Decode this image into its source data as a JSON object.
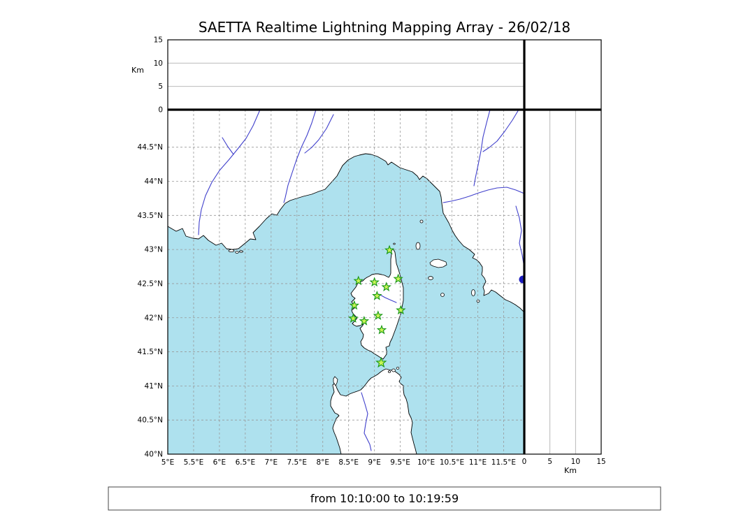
{
  "title": "SAETTA Realtime Lightning Mapping Array - 26/02/18",
  "footer": {
    "time_range": "from 10:10:00 to 10:19:59"
  },
  "colors": {
    "sea": "#aee1ee",
    "land": "#ffffff",
    "coastline": "#000000",
    "river": "#4040cc",
    "lake": "#1c1cbe",
    "grid_dashed": "#999999",
    "grid_solid": "#b0b0b0",
    "station_fill": "#c8f456",
    "station_stroke": "#149614",
    "axis": "#000000"
  },
  "chart_data": [
    {
      "name": "altitude-vs-longitude-panel",
      "type": "scatter",
      "title": "",
      "xlabel": "",
      "ylabel": "Km",
      "xlim": [
        5,
        11.9
      ],
      "ylim": [
        0,
        15
      ],
      "yticks": [
        {
          "v": 0,
          "label": "0"
        },
        {
          "v": 5,
          "label": "5"
        },
        {
          "v": 10,
          "label": "10"
        },
        {
          "v": 15,
          "label": "15"
        }
      ],
      "gridlines_km": [
        5,
        10
      ],
      "points": []
    },
    {
      "name": "map-panel",
      "type": "scatter",
      "title": "",
      "xlabel": "",
      "ylabel": "",
      "xlim": [
        5,
        11.9
      ],
      "ylim": [
        40,
        45.05
      ],
      "grid": "dashed every 0.5 degree",
      "xticks": [
        {
          "v": 5,
          "label": "5°E"
        },
        {
          "v": 5.5,
          "label": "5.5°E"
        },
        {
          "v": 6,
          "label": "6°E"
        },
        {
          "v": 6.5,
          "label": "6.5°E"
        },
        {
          "v": 7,
          "label": "7°E"
        },
        {
          "v": 7.5,
          "label": "7.5°E"
        },
        {
          "v": 8,
          "label": "8°E"
        },
        {
          "v": 8.5,
          "label": "8.5°E"
        },
        {
          "v": 9,
          "label": "9°E"
        },
        {
          "v": 9.5,
          "label": "9.5°E"
        },
        {
          "v": 10,
          "label": "10°E"
        },
        {
          "v": 10.5,
          "label": "10.5°E"
        },
        {
          "v": 11,
          "label": "11°E"
        },
        {
          "v": 11.5,
          "label": "11.5°E"
        }
      ],
      "yticks": [
        {
          "v": 40,
          "label": "40°N"
        },
        {
          "v": 40.5,
          "label": "40.5°N"
        },
        {
          "v": 41,
          "label": "41°N"
        },
        {
          "v": 41.5,
          "label": "41.5°N"
        },
        {
          "v": 42,
          "label": "42°N"
        },
        {
          "v": 42.5,
          "label": "42.5°N"
        },
        {
          "v": 43,
          "label": "43°N"
        },
        {
          "v": 43.5,
          "label": "43.5°N"
        },
        {
          "v": 44,
          "label": "44°N"
        },
        {
          "v": 44.5,
          "label": "44.5°N"
        }
      ],
      "stations_lma": [
        {
          "lon": 9.29,
          "lat": 42.99
        },
        {
          "lon": 8.69,
          "lat": 42.54
        },
        {
          "lon": 9.0,
          "lat": 42.52
        },
        {
          "lon": 9.46,
          "lat": 42.57
        },
        {
          "lon": 9.23,
          "lat": 42.45
        },
        {
          "lon": 9.05,
          "lat": 42.32
        },
        {
          "lon": 8.61,
          "lat": 42.18
        },
        {
          "lon": 9.51,
          "lat": 42.11
        },
        {
          "lon": 8.59,
          "lat": 41.99
        },
        {
          "lon": 8.8,
          "lat": 41.95
        },
        {
          "lon": 9.07,
          "lat": 42.03
        },
        {
          "lon": 9.14,
          "lat": 41.82
        },
        {
          "lon": 9.13,
          "lat": 41.34
        }
      ],
      "lightning_points": []
    },
    {
      "name": "altitude-vs-latitude-panel",
      "type": "scatter",
      "title": "",
      "xlabel": "Km",
      "ylabel": "",
      "xlim": [
        0,
        15
      ],
      "ylim": [
        40,
        45.05
      ],
      "xticks": [
        {
          "v": 0,
          "label": "0"
        },
        {
          "v": 5,
          "label": "5"
        },
        {
          "v": 10,
          "label": "10"
        },
        {
          "v": 15,
          "label": "15"
        }
      ],
      "gridlines_km": [
        5,
        10
      ],
      "points": []
    }
  ]
}
